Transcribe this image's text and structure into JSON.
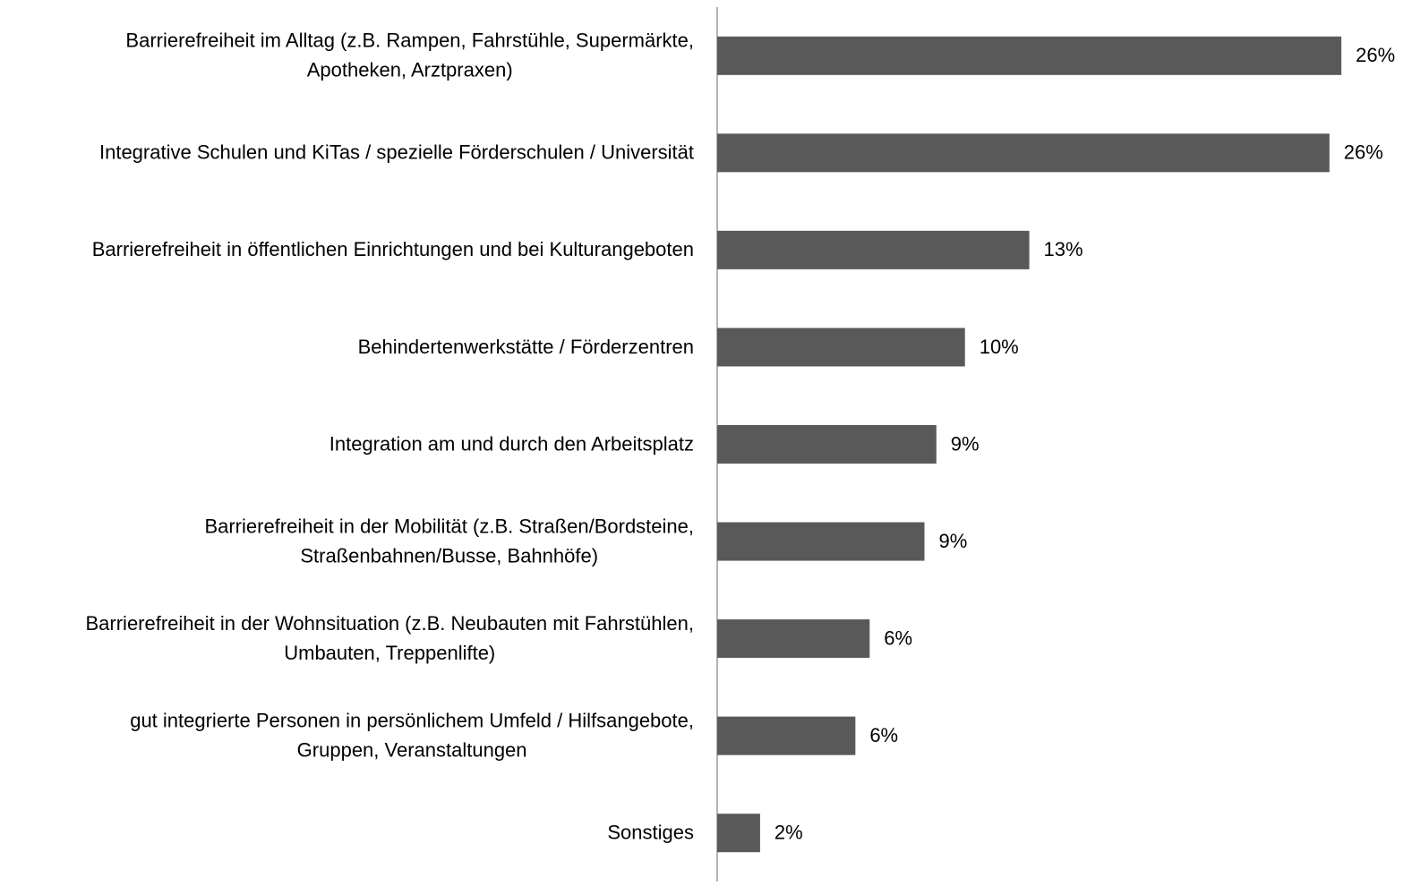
{
  "chart_data": {
    "type": "hbar",
    "categories": [
      [
        "Barrierefreiheit im Alltag (z.B. Rampen, Fahrstühle, Supermärkte,",
        "Apotheken, Arztpraxen)"
      ],
      [
        "Integrative Schulen und KiTas / spezielle Förderschulen / Universität"
      ],
      [
        "Barrierefreiheit in öffentlichen Einrichtungen und bei Kulturangeboten"
      ],
      [
        "Behindertenwerkstätte / Förderzentren"
      ],
      [
        "Integration am und durch den Arbeitsplatz"
      ],
      [
        "Barrierefreiheit in der Mobilität (z.B. Straßen/Bordsteine,",
        "Straßenbahnen/Busse, Bahnhöfe)"
      ],
      [
        "Barrierefreiheit in der Wohnsituation (z.B. Neubauten mit Fahrstühlen,",
        "Umbauten, Treppenlifte)"
      ],
      [
        "gut integrierte Personen in persönlichem Umfeld / Hilfsangebote,",
        "Gruppen, Veranstaltungen"
      ],
      [
        "Sonstiges"
      ]
    ],
    "values": [
      26.2,
      25.7,
      13.1,
      10.4,
      9.2,
      8.7,
      6.4,
      5.8,
      1.8
    ],
    "value_labels": [
      "26%",
      "26%",
      "13%",
      "10%",
      "9%",
      "9%",
      "6%",
      "6%",
      "2%"
    ],
    "color": "#595959",
    "xlim": [
      0,
      28
    ]
  }
}
